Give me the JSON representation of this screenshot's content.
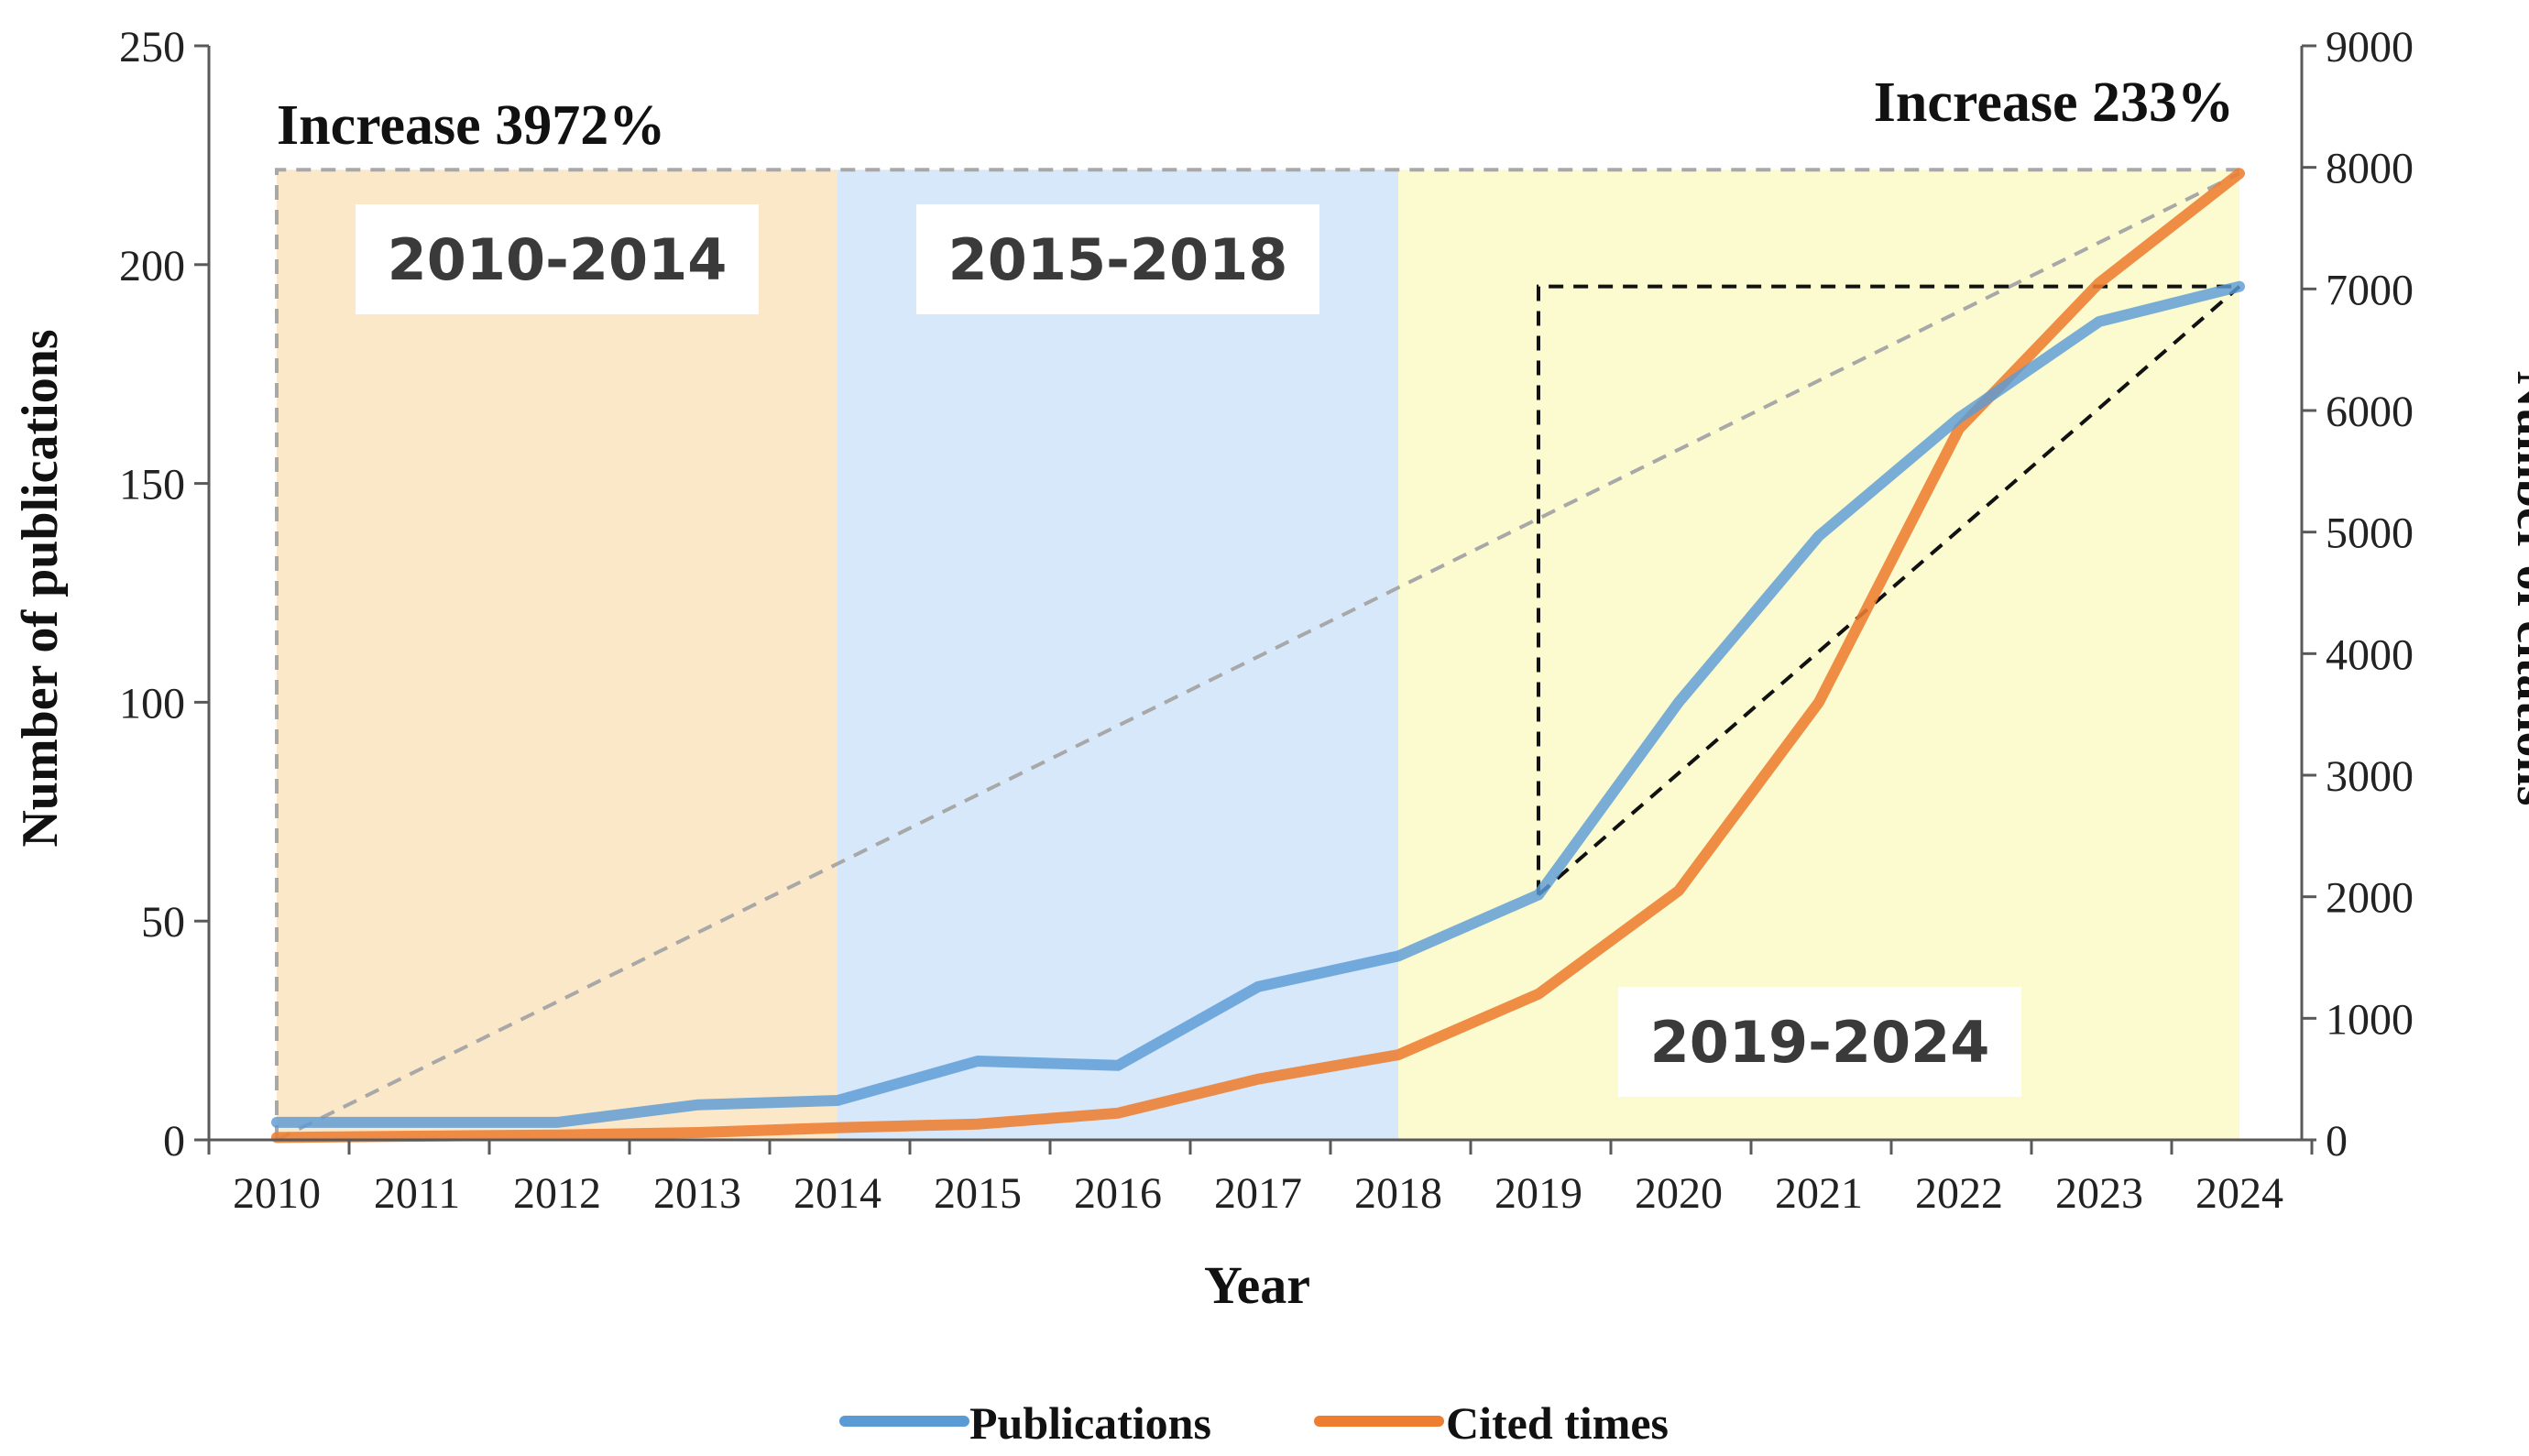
{
  "chart_data": {
    "type": "line",
    "categories": [
      "2010",
      "2011",
      "2012",
      "2013",
      "2014",
      "2015",
      "2016",
      "2017",
      "2018",
      "2019",
      "2020",
      "2021",
      "2022",
      "2023",
      "2024"
    ],
    "series": [
      {
        "name": "Publications",
        "axis": "left",
        "color": "#5B9BD5",
        "values": [
          4,
          4,
          4,
          8,
          9,
          18,
          17,
          35,
          42,
          56,
          100,
          138,
          165,
          187,
          195
        ]
      },
      {
        "name": "Cited times",
        "axis": "right",
        "color": "#ED7D31",
        "values": [
          20,
          30,
          40,
          60,
          100,
          130,
          220,
          500,
          700,
          1200,
          2050,
          3600,
          5850,
          7050,
          7950
        ]
      }
    ],
    "xlabel": "Year",
    "ylabel_left": "Number of publications",
    "ylabel_right": "Number of citations",
    "ylim_left": [
      0,
      250
    ],
    "ylim_right": [
      0,
      9000
    ],
    "yticks_left": [
      "0",
      "50",
      "100",
      "150",
      "200",
      "250"
    ],
    "yticks_right": [
      "0",
      "1000",
      "2000",
      "3000",
      "4000",
      "5000",
      "6000",
      "7000",
      "8000",
      "9000"
    ],
    "phases": [
      {
        "label": "2010-2014",
        "start": "2010",
        "end": "2014",
        "color": "#FBE8C8"
      },
      {
        "label": "2015-2018",
        "start": "2014",
        "end": "2018",
        "color": "#D6E8FA"
      },
      {
        "label": "2019-2024",
        "start": "2018",
        "end": "2024",
        "color": "#FBFBCF"
      }
    ],
    "annotations": [
      {
        "text": "Increase 3972%",
        "position": "top-left"
      },
      {
        "text": "Increase 233%",
        "position": "top-right"
      }
    ],
    "legend": {
      "position": "bottom",
      "entries": [
        "Publications",
        "Cited times"
      ]
    }
  }
}
